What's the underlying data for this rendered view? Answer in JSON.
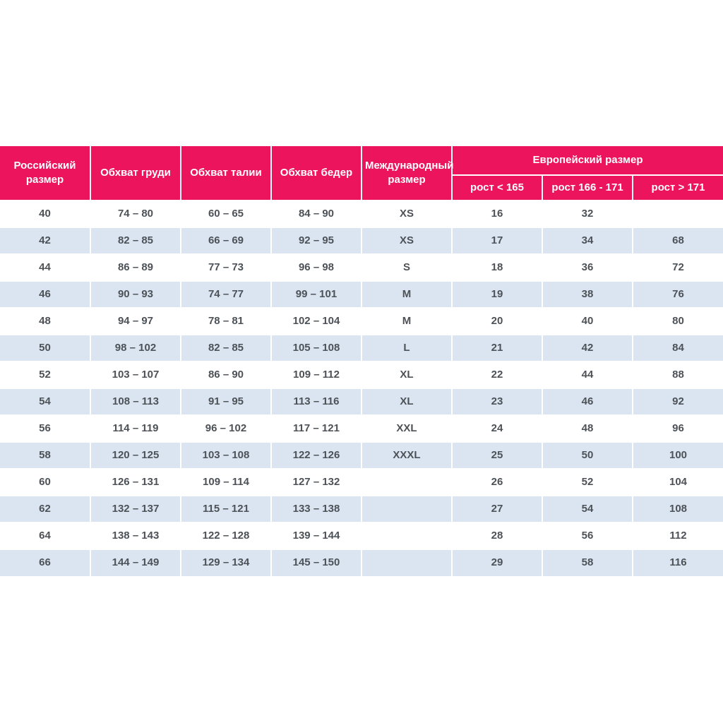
{
  "table": {
    "headers": [
      "Российский размер",
      "Обхват груди",
      "Обхват талии",
      "Обхват бедер",
      "Международный размер"
    ],
    "european_group": {
      "label": "Европейский размер",
      "subcolumns": [
        "рост < 165",
        "рост 166 - 171",
        "рост > 171"
      ]
    },
    "rows": [
      [
        "40",
        "74 – 80",
        "60 – 65",
        "84 – 90",
        "XS",
        "16",
        "32",
        ""
      ],
      [
        "42",
        "82 – 85",
        "66 – 69",
        "92 – 95",
        "XS",
        "17",
        "34",
        "68"
      ],
      [
        "44",
        "86 – 89",
        "77 – 73",
        "96 – 98",
        "S",
        "18",
        "36",
        "72"
      ],
      [
        "46",
        "90 – 93",
        "74 – 77",
        "99 – 101",
        "M",
        "19",
        "38",
        "76"
      ],
      [
        "48",
        "94 – 97",
        "78 – 81",
        "102 – 104",
        "M",
        "20",
        "40",
        "80"
      ],
      [
        "50",
        "98 – 102",
        "82 – 85",
        "105 – 108",
        "L",
        "21",
        "42",
        "84"
      ],
      [
        "52",
        "103 – 107",
        "86 – 90",
        "109 – 112",
        "XL",
        "22",
        "44",
        "88"
      ],
      [
        "54",
        "108 – 113",
        "91 – 95",
        "113 – 116",
        "XL",
        "23",
        "46",
        "92"
      ],
      [
        "56",
        "114 – 119",
        "96 – 102",
        "117 – 121",
        "XXL",
        "24",
        "48",
        "96"
      ],
      [
        "58",
        "120 – 125",
        "103 – 108",
        "122 – 126",
        "XXXL",
        "25",
        "50",
        "100"
      ],
      [
        "60",
        "126 – 131",
        "109 – 114",
        "127 – 132",
        "",
        "26",
        "52",
        "104"
      ],
      [
        "62",
        "132 – 137",
        "115 – 121",
        "133 – 138",
        "",
        "27",
        "54",
        "108"
      ],
      [
        "64",
        "138 – 143",
        "122 – 128",
        "139 – 144",
        "",
        "28",
        "56",
        "112"
      ],
      [
        "66",
        "144 – 149",
        "129 – 134",
        "145 – 150",
        "",
        "29",
        "58",
        "116"
      ]
    ],
    "colors": {
      "header_bg": "#ED145E",
      "header_text": "#FFFFFF",
      "row_alt_bg": "#DBE5F1",
      "row_bg": "#FFFFFF",
      "body_text": "#4C5257"
    }
  }
}
